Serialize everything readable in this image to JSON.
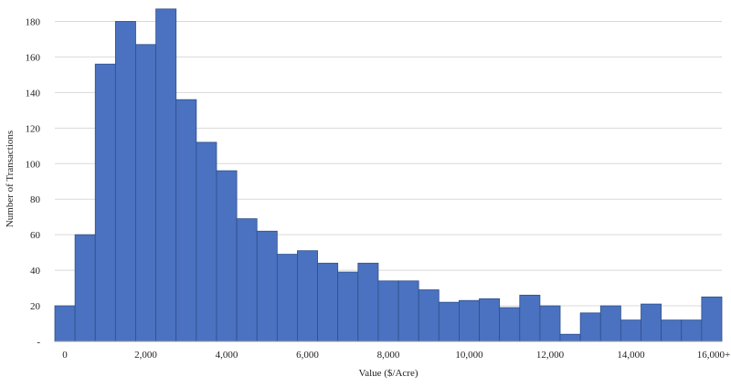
{
  "chart_data": {
    "type": "bar",
    "title": "",
    "xlabel": "Value ($/Acre)",
    "ylabel": "Number of Transactions",
    "ylim": [
      0,
      190
    ],
    "grid": true,
    "y_ticks": [
      {
        "value": 0,
        "label": "-"
      },
      {
        "value": 20,
        "label": "20"
      },
      {
        "value": 40,
        "label": "40"
      },
      {
        "value": 60,
        "label": "60"
      },
      {
        "value": 80,
        "label": "80"
      },
      {
        "value": 100,
        "label": "100"
      },
      {
        "value": 120,
        "label": "120"
      },
      {
        "value": 140,
        "label": "140"
      },
      {
        "value": 160,
        "label": "160"
      },
      {
        "value": 180,
        "label": "180"
      }
    ],
    "x_ticks": [
      {
        "value": 0,
        "label": "0"
      },
      {
        "value": 2000,
        "label": "2,000"
      },
      {
        "value": 4000,
        "label": "4,000"
      },
      {
        "value": 6000,
        "label": "6,000"
      },
      {
        "value": 8000,
        "label": "8,000"
      },
      {
        "value": 10000,
        "label": "10,000"
      },
      {
        "value": 12000,
        "label": "12,000"
      },
      {
        "value": 14000,
        "label": "14,000"
      },
      {
        "value": 16000,
        "label": "16,000+"
      }
    ],
    "bin_width": 500,
    "bins_start": [
      -250,
      250,
      750,
      1250,
      1750,
      2250,
      2750,
      3250,
      3750,
      4250,
      4750,
      5250,
      5750,
      6250,
      6750,
      7250,
      7750,
      8250,
      8750,
      9250,
      9750,
      10250,
      10750,
      11250,
      11750,
      12250,
      12750,
      13250,
      13750,
      14250,
      14750,
      15250,
      15750
    ],
    "values": [
      20,
      60,
      156,
      180,
      167,
      187,
      136,
      112,
      96,
      69,
      62,
      49,
      51,
      44,
      39,
      44,
      34,
      34,
      29,
      22,
      23,
      24,
      19,
      26,
      20,
      4,
      16,
      20,
      12,
      21,
      12,
      12,
      25
    ],
    "bar_color": "#4a72c0",
    "bar_edge_color": "#2f4f8a"
  }
}
